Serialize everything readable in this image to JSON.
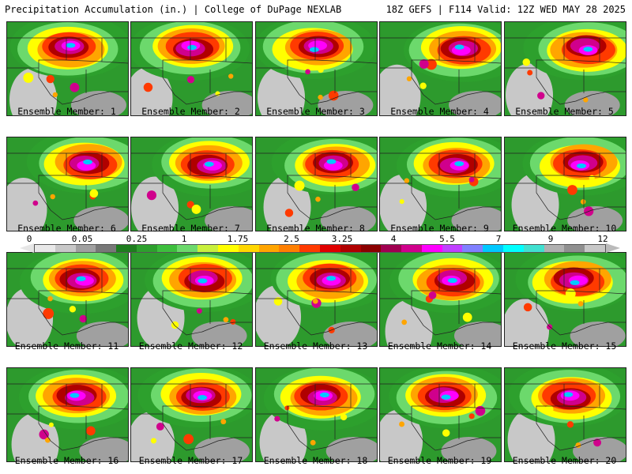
{
  "header": {
    "title": "Precipitation Accumulation (in.) | College of DuPage NEXLAB",
    "run_info": "18Z GEFS | F114 Valid: 12Z WED MAY 28 2025"
  },
  "colorbar": {
    "labels": [
      "0",
      "0.05",
      "0.25",
      "1",
      "1.75",
      "2.5",
      "3.25",
      "4",
      "5.5",
      "7",
      "9",
      "12"
    ],
    "colors": [
      "#e8e8e8",
      "#c8c8c8",
      "#a0a0a0",
      "#787878",
      "#1e7d1e",
      "#2da02d",
      "#3dbf3d",
      "#6cd96c",
      "#c8f03c",
      "#ffff00",
      "#ffd700",
      "#ffa500",
      "#ff7f00",
      "#ff3a00",
      "#e00000",
      "#b00000",
      "#8b0000",
      "#a00050",
      "#d0008c",
      "#ff00ff",
      "#c040ff",
      "#8080ff",
      "#00c8ff",
      "#00ffff",
      "#40e0d0",
      "#b0b0b0",
      "#909090",
      "#c8c8c8"
    ]
  },
  "panels": [
    {
      "caption": "Ensemble Member: 1"
    },
    {
      "caption": "Ensemble Member: 2"
    },
    {
      "caption": "Ensemble Member: 3"
    },
    {
      "caption": "Ensemble Member: 4"
    },
    {
      "caption": "Ensemble Member: 5"
    },
    {
      "caption": "Ensemble Member: 6"
    },
    {
      "caption": "Ensemble Member: 7"
    },
    {
      "caption": "Ensemble Member: 8"
    },
    {
      "caption": "Ensemble Member: 9"
    },
    {
      "caption": "Ensemble Member: 10"
    },
    {
      "caption": "Ensemble Member: 11"
    },
    {
      "caption": "Ensemble Member: 12"
    },
    {
      "caption": "Ensemble Member: 13"
    },
    {
      "caption": "Ensemble Member: 14"
    },
    {
      "caption": "Ensemble Member: 15"
    },
    {
      "caption": "Ensemble Member: 16"
    },
    {
      "caption": "Ensemble Member: 17"
    },
    {
      "caption": "Ensemble Member: 18"
    },
    {
      "caption": "Ensemble Member: 19"
    },
    {
      "caption": "Ensemble Member: 20"
    }
  ]
}
